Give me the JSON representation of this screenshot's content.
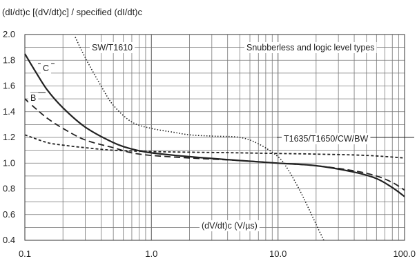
{
  "chart_data": {
    "type": "line",
    "title": "(dI/dt)c [(dV/dt)c] / specified (dI/dt)c",
    "xlabel": "(dV/dt)c (V/µs)",
    "ylabel": "",
    "x_scale": "log",
    "xlim": [
      0.1,
      100.0
    ],
    "ylim": [
      0.4,
      2.0
    ],
    "x_ticks": [
      {
        "value": 0.1,
        "label": "0.1"
      },
      {
        "value": 1.0,
        "label": "1.0"
      },
      {
        "value": 10.0,
        "label": "10.0"
      },
      {
        "value": 100.0,
        "label": "100.0"
      }
    ],
    "y_ticks": [
      {
        "value": 0.4,
        "label": "0.4"
      },
      {
        "value": 0.6,
        "label": "0.6"
      },
      {
        "value": 0.8,
        "label": "0.8"
      },
      {
        "value": 1.0,
        "label": "1.0"
      },
      {
        "value": 1.2,
        "label": "1.2"
      },
      {
        "value": 1.4,
        "label": "1.4"
      },
      {
        "value": 1.6,
        "label": "1.6"
      },
      {
        "value": 1.8,
        "label": "1.8"
      },
      {
        "value": 2.0,
        "label": "2.0"
      }
    ],
    "grid": true,
    "series": [
      {
        "name": "C",
        "style": "solid",
        "color": "#222222",
        "points": [
          [
            0.1,
            1.85
          ],
          [
            0.12,
            1.72
          ],
          [
            0.15,
            1.57
          ],
          [
            0.2,
            1.43
          ],
          [
            0.3,
            1.28
          ],
          [
            0.5,
            1.16
          ],
          [
            0.7,
            1.11
          ],
          [
            1.0,
            1.08
          ],
          [
            2.0,
            1.05
          ],
          [
            5.0,
            1.02
          ],
          [
            10.0,
            1.0
          ],
          [
            20.0,
            0.98
          ],
          [
            40.0,
            0.93
          ],
          [
            60.0,
            0.88
          ],
          [
            80.0,
            0.81
          ],
          [
            100.0,
            0.74
          ]
        ]
      },
      {
        "name": "B",
        "style": "dashed",
        "color": "#222222",
        "points": [
          [
            0.1,
            1.5
          ],
          [
            0.12,
            1.43
          ],
          [
            0.15,
            1.35
          ],
          [
            0.2,
            1.27
          ],
          [
            0.3,
            1.18
          ],
          [
            0.5,
            1.12
          ],
          [
            0.7,
            1.08
          ],
          [
            1.0,
            1.06
          ],
          [
            2.0,
            1.04
          ],
          [
            5.0,
            1.02
          ],
          [
            10.0,
            1.0
          ],
          [
            20.0,
            0.98
          ],
          [
            40.0,
            0.94
          ],
          [
            60.0,
            0.9
          ],
          [
            80.0,
            0.85
          ],
          [
            100.0,
            0.79
          ]
        ]
      },
      {
        "name": "T1635/T1650/CW/BW",
        "style": "short-dash",
        "color": "#222222",
        "points": [
          [
            0.1,
            1.22
          ],
          [
            0.15,
            1.16
          ],
          [
            0.2,
            1.14
          ],
          [
            0.3,
            1.12
          ],
          [
            0.5,
            1.1
          ],
          [
            1.0,
            1.09
          ],
          [
            2.0,
            1.085
          ],
          [
            5.0,
            1.08
          ],
          [
            10.0,
            1.075
          ],
          [
            20.0,
            1.07
          ],
          [
            50.0,
            1.06
          ],
          [
            100.0,
            1.04
          ]
        ]
      },
      {
        "name": "SW/T1610",
        "style": "dotted",
        "color": "#222222",
        "points": [
          [
            0.25,
            1.98
          ],
          [
            0.3,
            1.82
          ],
          [
            0.4,
            1.6
          ],
          [
            0.5,
            1.45
          ],
          [
            0.7,
            1.32
          ],
          [
            1.0,
            1.27
          ],
          [
            1.5,
            1.24
          ],
          [
            2.0,
            1.22
          ],
          [
            3.0,
            1.21
          ],
          [
            5.0,
            1.2
          ],
          [
            7.0,
            1.15
          ],
          [
            10.0,
            1.05
          ],
          [
            12.0,
            0.95
          ],
          [
            15.0,
            0.78
          ],
          [
            18.0,
            0.62
          ],
          [
            21.0,
            0.48
          ],
          [
            23.0,
            0.4
          ]
        ]
      }
    ],
    "annotations": [
      {
        "text": "SW/T1610"
      },
      {
        "text": "Snubberless and logic level types"
      },
      {
        "text": "T1635/T1650/CW/BW"
      },
      {
        "text": "C"
      },
      {
        "text": "B"
      },
      {
        "text": "(dV/dt)c (V/µs)"
      }
    ]
  }
}
